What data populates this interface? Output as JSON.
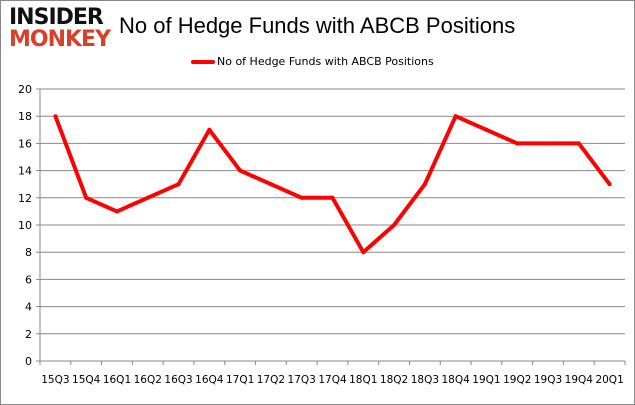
{
  "logo": {
    "line1": "INSIDER",
    "line2": "MONKEY"
  },
  "chart_data": {
    "type": "line",
    "title": "No of Hedge Funds with ABCB Positions",
    "categories": [
      "15Q3",
      "15Q4",
      "16Q1",
      "16Q2",
      "16Q3",
      "16Q4",
      "17Q1",
      "17Q2",
      "17Q3",
      "17Q4",
      "18Q1",
      "18Q2",
      "18Q3",
      "18Q4",
      "19Q1",
      "19Q2",
      "19Q3",
      "19Q4",
      "20Q1"
    ],
    "series": [
      {
        "name": "No of Hedge Funds with ABCB Positions",
        "color": "#ff0000",
        "values": [
          18,
          12,
          11,
          12,
          13,
          17,
          14,
          13,
          12,
          12,
          8,
          10,
          13,
          18,
          17,
          16,
          16,
          16,
          13
        ]
      }
    ],
    "ylim": [
      0,
      20
    ],
    "yticks": [
      0,
      2,
      4,
      6,
      8,
      10,
      12,
      14,
      16,
      18,
      20
    ],
    "grid": true,
    "legend": "top"
  }
}
